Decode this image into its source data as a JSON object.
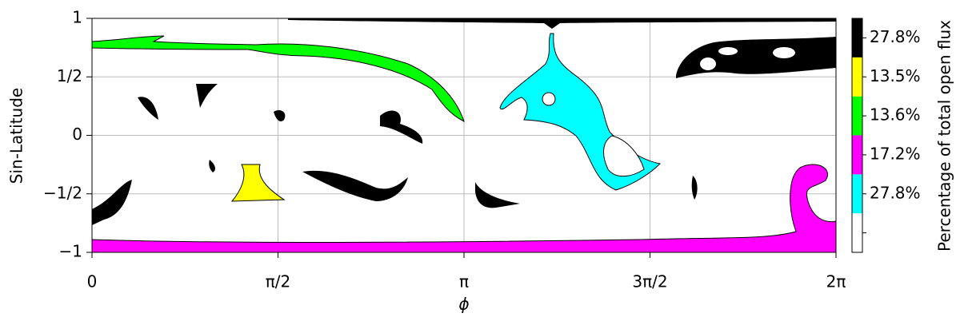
{
  "chart_data": {
    "type": "region-map",
    "xlabel": "ϕ",
    "ylabel": "Sin-Latitude",
    "xlim": [
      0,
      6.283185307
    ],
    "ylim": [
      -1,
      1
    ],
    "xticks": [
      0,
      {
        "value": 1.570796327,
        "label": "π/2"
      },
      {
        "value": 3.141592654,
        "label": "π"
      },
      {
        "value": 4.71238898,
        "label": "3π/2"
      },
      {
        "value": 6.283185307,
        "label": "2π"
      }
    ],
    "yticks": [
      {
        "value": -1,
        "label": "−1"
      },
      {
        "value": -0.5,
        "label": "−1/2"
      },
      0,
      {
        "value": 0.5,
        "label": "1/2"
      },
      1
    ],
    "grid": true,
    "colorbar": {
      "label": "Percentage of total open flux",
      "colors": [
        "#ffffff",
        "#00ffff",
        "#ff00ff",
        "#00ff00",
        "#ffff00",
        "#000000"
      ],
      "values": [
        null,
        27.8,
        17.2,
        13.6,
        13.5,
        27.8
      ],
      "value_labels": [
        null,
        "27.8%",
        "17.2%",
        "13.6%",
        "13.5%",
        "27.8%"
      ]
    }
  }
}
